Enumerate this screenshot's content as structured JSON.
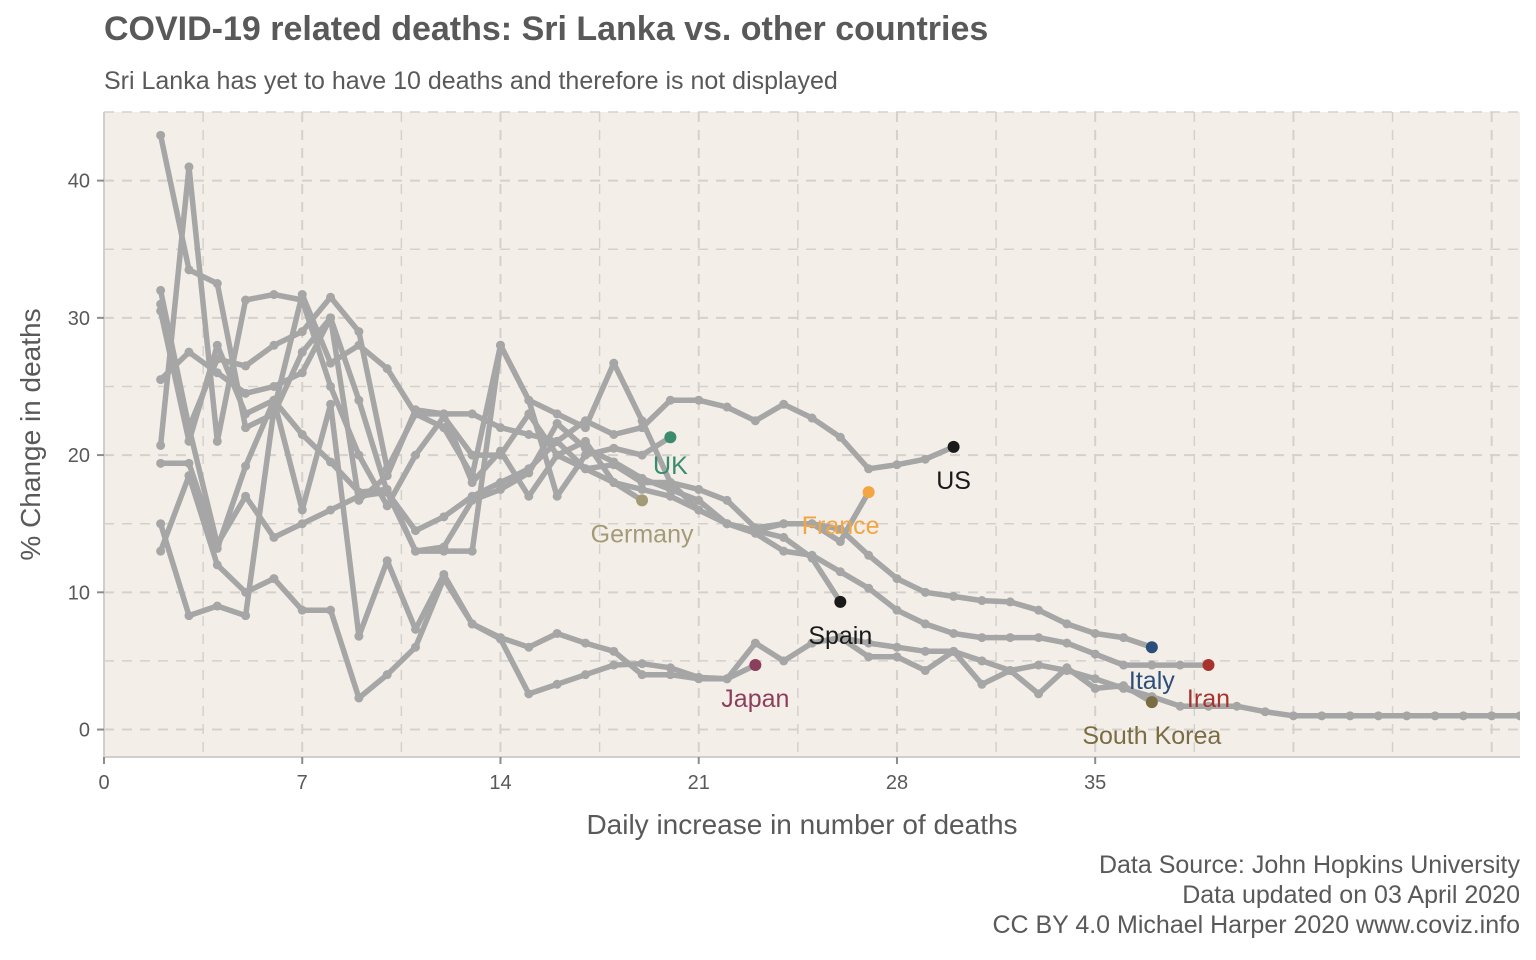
{
  "chart_data": {
    "type": "line",
    "title": "COVID-19 related deaths: Sri Lanka vs. other countries",
    "subtitle": "Sri Lanka has yet to have 10 deaths and therefore is not displayed",
    "xlabel": "Daily increase in number of deaths",
    "ylabel": "% Change in deaths",
    "xlim": [
      0,
      50
    ],
    "ylim": [
      -2,
      45
    ],
    "x_ticks": [
      0,
      7,
      14,
      21,
      28,
      35
    ],
    "y_ticks": [
      0,
      10,
      20,
      30,
      40
    ],
    "grid": true,
    "background_color": "#F3EEE8",
    "line_color": "#A6A6A6",
    "caption": [
      "Data Source: John Hopkins University",
      "Data updated on 03 April 2020",
      "CC BY 4.0 Michael Harper 2020 www.coviz.info"
    ],
    "series": [
      {
        "name": "US",
        "color": "#1A1A1A",
        "x": [
          2,
          3,
          4,
          5,
          6,
          7,
          8,
          9,
          10,
          11,
          12,
          13,
          14,
          15,
          16,
          17,
          18,
          19,
          20,
          21,
          22,
          23,
          24,
          25,
          26,
          27,
          28,
          29,
          30
        ],
        "y": [
          31,
          22,
          27,
          26.5,
          28,
          29,
          31.5,
          29,
          19,
          23,
          23,
          23,
          22,
          21.5,
          21,
          22.5,
          21.5,
          22,
          24,
          24,
          23.5,
          22.5,
          23.7,
          22.7,
          21.3,
          19,
          19.3,
          19.7,
          20.6
        ]
      },
      {
        "name": "UK",
        "color": "#3B8C6E",
        "x": [
          2,
          3,
          4,
          5,
          6,
          7,
          8,
          9,
          10,
          11,
          12,
          13,
          14,
          15,
          16,
          17,
          18,
          19,
          20
        ],
        "y": [
          30.5,
          21,
          28,
          23,
          24,
          21.5,
          19.5,
          17.3,
          17.5,
          13,
          13,
          13,
          28,
          24,
          17,
          20,
          20.5,
          20,
          21.3
        ]
      },
      {
        "name": "Germany",
        "color": "#A39B78",
        "x": [
          2,
          3,
          4,
          5,
          6,
          7,
          8,
          9,
          10,
          11,
          12,
          13,
          14,
          15,
          16,
          17,
          18,
          19
        ],
        "y": [
          25.5,
          27.5,
          26,
          24.5,
          25,
          26,
          30,
          24,
          17.3,
          14.5,
          15.5,
          17,
          18,
          19,
          21,
          19,
          18,
          16.7
        ]
      },
      {
        "name": "France",
        "color": "#F2A541",
        "x": [
          2,
          3,
          4,
          5,
          6,
          7,
          8,
          9,
          10,
          11,
          12,
          13,
          14,
          15,
          16,
          17,
          18,
          19,
          20,
          21,
          22,
          23,
          24,
          25,
          26,
          27
        ],
        "y": [
          20.7,
          41,
          21,
          31.3,
          31.7,
          31.3,
          25,
          20,
          16.3,
          20,
          22.8,
          20,
          20,
          23,
          20,
          21,
          18,
          17.5,
          17,
          16,
          15,
          14.5,
          15,
          15,
          13.7,
          17.3
        ]
      },
      {
        "name": "Spain",
        "color": "#1A1A1A",
        "x": [
          2,
          3,
          4,
          5,
          6,
          7,
          8,
          9,
          10,
          11,
          12,
          13,
          14,
          15,
          16,
          17,
          18,
          19,
          20,
          21,
          22,
          23,
          24,
          25,
          26
        ],
        "y": [
          15,
          8.3,
          9,
          8.3,
          23.3,
          31.7,
          26.7,
          28,
          26.3,
          23,
          22,
          18.5,
          28,
          24,
          23,
          22,
          26.7,
          22.5,
          18,
          16,
          15,
          14.5,
          14,
          12.5,
          9.3
        ]
      },
      {
        "name": "Japan",
        "color": "#8C3F5D",
        "x": [
          2,
          3,
          4,
          5,
          6,
          7,
          8,
          9,
          10,
          11,
          12,
          13,
          14,
          15,
          16,
          17,
          18,
          19,
          20,
          21,
          22,
          23
        ],
        "y": [
          13,
          18.5,
          12,
          10,
          11,
          8.7,
          8.7,
          2.3,
          4,
          6,
          11,
          7.7,
          6.7,
          6,
          7,
          6.3,
          5.7,
          4,
          4,
          3.7,
          3.7,
          4.7
        ]
      },
      {
        "name": "Italy",
        "color": "#2B4F7A",
        "x": [
          2,
          3,
          4,
          5,
          6,
          7,
          8,
          9,
          10,
          11,
          12,
          13,
          14,
          15,
          16,
          17,
          18,
          19,
          20,
          21,
          22,
          23,
          24,
          25,
          26,
          27,
          28,
          29,
          30,
          31,
          32,
          33,
          34,
          35,
          36,
          37
        ],
        "y": [
          43.3,
          33.5,
          32.5,
          22,
          23,
          27.5,
          30,
          16.7,
          18.5,
          23.3,
          23,
          18,
          20.3,
          17,
          20,
          19,
          19.3,
          18,
          18,
          17.5,
          16.7,
          14.7,
          15,
          15,
          14.6,
          12.7,
          11,
          10,
          9.7,
          9.4,
          9.3,
          8.7,
          7.7,
          7,
          6.7,
          6
        ]
      },
      {
        "name": "Iran",
        "color": "#A8332E",
        "x": [
          2,
          3,
          4,
          5,
          6,
          7,
          8,
          9,
          10,
          11,
          12,
          13,
          14,
          15,
          16,
          17,
          18,
          19,
          20,
          21,
          22,
          23,
          24,
          25,
          26,
          27,
          28,
          29,
          30,
          31,
          32,
          33,
          34,
          35,
          36,
          37,
          38,
          39
        ],
        "y": [
          32,
          22,
          13.5,
          17,
          14,
          15,
          16,
          17,
          17.3,
          13,
          13.3,
          16.7,
          17.5,
          18.7,
          22.3,
          20.5,
          19.5,
          18.3,
          17.5,
          16.7,
          15,
          14.3,
          13,
          12.7,
          11.5,
          10.3,
          8.7,
          7.7,
          7,
          6.7,
          6.7,
          6.7,
          6.3,
          5.5,
          4.7,
          4.7,
          4.7,
          4.7
        ]
      },
      {
        "name": "South Korea",
        "color": "#7A6C43",
        "x": [
          2,
          3,
          4,
          5,
          6,
          7,
          8,
          9,
          10,
          11,
          12,
          13,
          14,
          15,
          16,
          17,
          18,
          19,
          20,
          21,
          22,
          23,
          24,
          25,
          26,
          27,
          28,
          29,
          30,
          31,
          32,
          33,
          34,
          35,
          36,
          37
        ],
        "y": [
          19.4,
          19.4,
          13.2,
          19.2,
          24,
          16,
          23.7,
          6.8,
          12.3,
          7.3,
          11.3,
          7.7,
          6.6,
          2.6,
          3.3,
          4,
          4.7,
          4.8,
          4.5,
          3.8,
          3.7,
          6.3,
          5,
          6.3,
          6.7,
          5.3,
          5.3,
          4.3,
          5.7,
          3.3,
          4.3,
          2.6,
          4.5,
          3,
          3.2,
          2
        ]
      },
      {
        "name": "",
        "x": [
          26,
          27,
          28,
          29,
          30,
          31,
          32,
          33,
          34,
          35,
          36,
          37,
          38,
          39,
          40,
          41,
          42,
          43,
          44,
          45,
          46,
          47,
          48,
          49,
          50
        ],
        "y": [
          6.7,
          6.3,
          6,
          5.7,
          5.7,
          5,
          4.3,
          4.7,
          4.3,
          3.7,
          3,
          2.4,
          1.7,
          1.7,
          1.7,
          1.3,
          1,
          1,
          1,
          1,
          1,
          1,
          1,
          1,
          1
        ]
      }
    ]
  }
}
